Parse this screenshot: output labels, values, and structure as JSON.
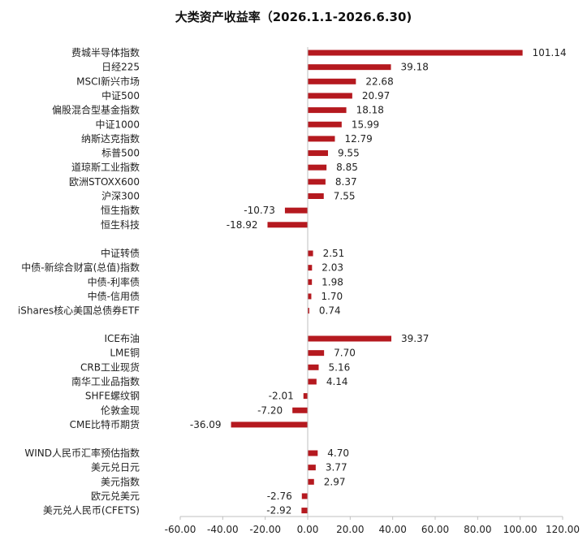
{
  "chart_data": {
    "type": "bar",
    "orientation": "horizontal",
    "title": "大类资产收益率（2026.1.1-2026.6.30)",
    "bar_color": "#B5191F",
    "xlim": [
      -60,
      120
    ],
    "x_ticks": [
      "-60.00",
      "-40.00",
      "-20.00",
      "0.00",
      "20.00",
      "40.00",
      "60.00",
      "80.00",
      "100.00",
      "120.00"
    ],
    "grid": false,
    "groups": [
      {
        "categories": [
          "费城半导体指数",
          "日经225",
          "MSCI新兴市场",
          "中证500",
          "偏股混合型基金指数",
          "中证1000",
          "纳斯达克指数",
          "标普500",
          "道琼斯工业指数",
          "欧洲STOXX600",
          "沪深300",
          "恒生指数",
          "恒生科技"
        ],
        "values": [
          101.14,
          39.18,
          22.68,
          20.97,
          18.18,
          15.99,
          12.79,
          9.55,
          8.85,
          8.37,
          7.55,
          -10.73,
          -18.92
        ],
        "labels": [
          "101.14",
          "39.18",
          "22.68",
          "20.97",
          "18.18",
          "15.99",
          "12.79",
          "9.55",
          "8.85",
          "8.37",
          "7.55",
          "-10.73",
          "-18.92"
        ]
      },
      {
        "categories": [
          "中证转债",
          "中债-新综合财富(总值)指数",
          "中债-利率债",
          "中债-信用债",
          "iShares核心美国总债券ETF"
        ],
        "values": [
          2.51,
          2.03,
          1.98,
          1.7,
          0.74
        ],
        "labels": [
          "2.51",
          "2.03",
          "1.98",
          "1.70",
          "0.74"
        ]
      },
      {
        "categories": [
          "ICE布油",
          "LME铜",
          "CRB工业现货",
          "南华工业品指数",
          "SHFE螺纹钢",
          "伦敦金现",
          "CME比特币期货"
        ],
        "values": [
          39.37,
          7.7,
          5.16,
          4.14,
          -2.01,
          -7.2,
          -36.09
        ],
        "labels": [
          "39.37",
          "7.70",
          "5.16",
          "4.14",
          "-2.01",
          "-7.20",
          "-36.09"
        ]
      },
      {
        "categories": [
          "WIND人民币汇率预估指数",
          "美元兑日元",
          "美元指数",
          "欧元兑美元",
          "美元兑人民币(CFETS)"
        ],
        "values": [
          4.7,
          3.77,
          2.97,
          -2.76,
          -2.92
        ],
        "labels": [
          "4.70",
          "3.77",
          "2.97",
          "-2.76",
          "-2.92"
        ]
      }
    ]
  }
}
